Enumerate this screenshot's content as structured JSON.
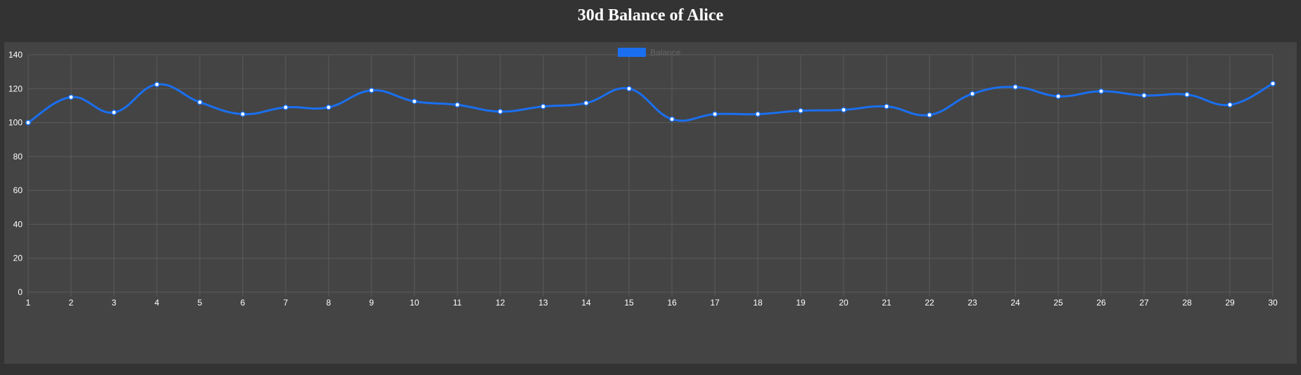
{
  "title": "30d Balance of Alice",
  "colors": {
    "page_background": "#333333",
    "panel_background": "#444444",
    "series": "#1a6ff0",
    "grid": "#5a5a5a",
    "tick_text": "#ffffff",
    "legend_text": "#666666"
  },
  "chart_data": {
    "type": "line",
    "title": "30d Balance of Alice",
    "x": [
      1,
      2,
      3,
      4,
      5,
      6,
      7,
      8,
      9,
      10,
      11,
      12,
      13,
      14,
      15,
      16,
      17,
      18,
      19,
      20,
      21,
      22,
      23,
      24,
      25,
      26,
      27,
      28,
      29,
      30
    ],
    "series": [
      {
        "name": "Balance",
        "color": "#1a6ff0",
        "values": [
          100,
          115,
          106,
          122.5,
          112,
          105,
          109,
          109,
          119,
          112.5,
          110.5,
          106.5,
          109.5,
          111.5,
          120,
          102,
          105,
          105,
          107,
          107.5,
          109.5,
          104.5,
          117,
          121,
          115.5,
          118.5,
          116,
          116.5,
          110.5,
          123
        ]
      }
    ],
    "y_ticks": [
      0,
      20,
      40,
      60,
      80,
      100,
      120,
      140
    ],
    "ylim": [
      0,
      140
    ],
    "xlabel": "",
    "ylabel": "",
    "grid": true,
    "legend": "top-center",
    "smooth": true
  }
}
